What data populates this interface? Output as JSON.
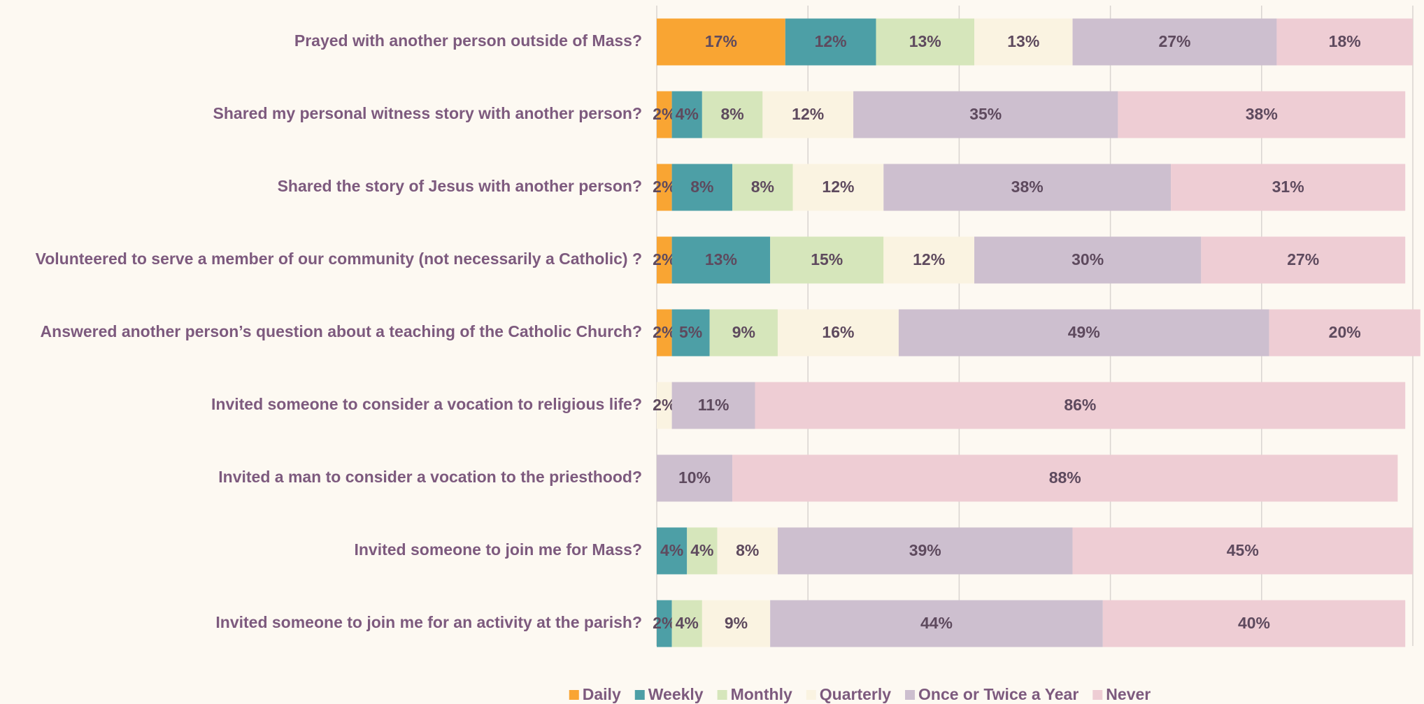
{
  "chart_data": {
    "type": "stacked-bar-horizontal",
    "categories": [
      "Prayed with another person outside of Mass?",
      "Shared my personal witness story with another person?",
      "Shared the story of Jesus with another person?",
      "Volunteered to serve a member of our community (not necessarily a Catholic) ?",
      "Answered another person’s question about a teaching of the Catholic Church?",
      "Invited someone to consider a vocation to religious life?",
      "Invited a man to consider a vocation to the priesthood?",
      "Invited someone to join me for Mass?",
      "Invited someone to join me for an activity at the parish?"
    ],
    "series": [
      {
        "name": "Daily",
        "color": "#f9a533",
        "values": [
          17,
          2,
          2,
          2,
          2,
          null,
          null,
          null,
          null
        ],
        "value_labels": [
          "17%",
          "2%",
          "2%",
          "2%",
          "2%",
          null,
          null,
          null,
          null
        ]
      },
      {
        "name": "Weekly",
        "color": "#4d9fa6",
        "values": [
          12,
          4,
          8,
          13,
          5,
          null,
          null,
          4,
          2
        ],
        "value_labels": [
          "12%",
          "4%",
          "8%",
          "13%",
          "5%",
          null,
          null,
          "4%",
          "2%"
        ]
      },
      {
        "name": "Monthly",
        "color": "#d6e6bb",
        "values": [
          13,
          8,
          8,
          15,
          9,
          null,
          null,
          4,
          4
        ],
        "value_labels": [
          "13%",
          "8%",
          "8%",
          "15%",
          "9%",
          null,
          null,
          "4%",
          "4%"
        ]
      },
      {
        "name": "Quarterly",
        "color": "#faf3e1",
        "values": [
          13,
          12,
          12,
          12,
          16,
          2,
          null,
          8,
          9
        ],
        "value_labels": [
          "13%",
          "12%",
          "12%",
          "12%",
          "16%",
          "2%",
          null,
          "8%",
          "9%"
        ]
      },
      {
        "name": "Once or Twice a Year",
        "color": "#cdbfcf",
        "values": [
          27,
          35,
          38,
          30,
          49,
          11,
          10,
          39,
          44
        ],
        "value_labels": [
          "27%",
          "35%",
          "38%",
          "30%",
          "49%",
          "11%",
          "10%",
          "39%",
          "44%"
        ]
      },
      {
        "name": "Never",
        "color": "#eecdd4",
        "values": [
          18,
          38,
          31,
          27,
          20,
          86,
          88,
          45,
          40
        ],
        "value_labels": [
          "18%",
          "38%",
          "31%",
          "27%",
          "20%",
          "86%",
          "88%",
          "45%",
          "40%"
        ]
      }
    ],
    "xlim": [
      0,
      100
    ],
    "xticks": [
      0,
      20,
      40,
      60,
      80,
      100
    ],
    "grid": true,
    "legend": "bottom"
  }
}
